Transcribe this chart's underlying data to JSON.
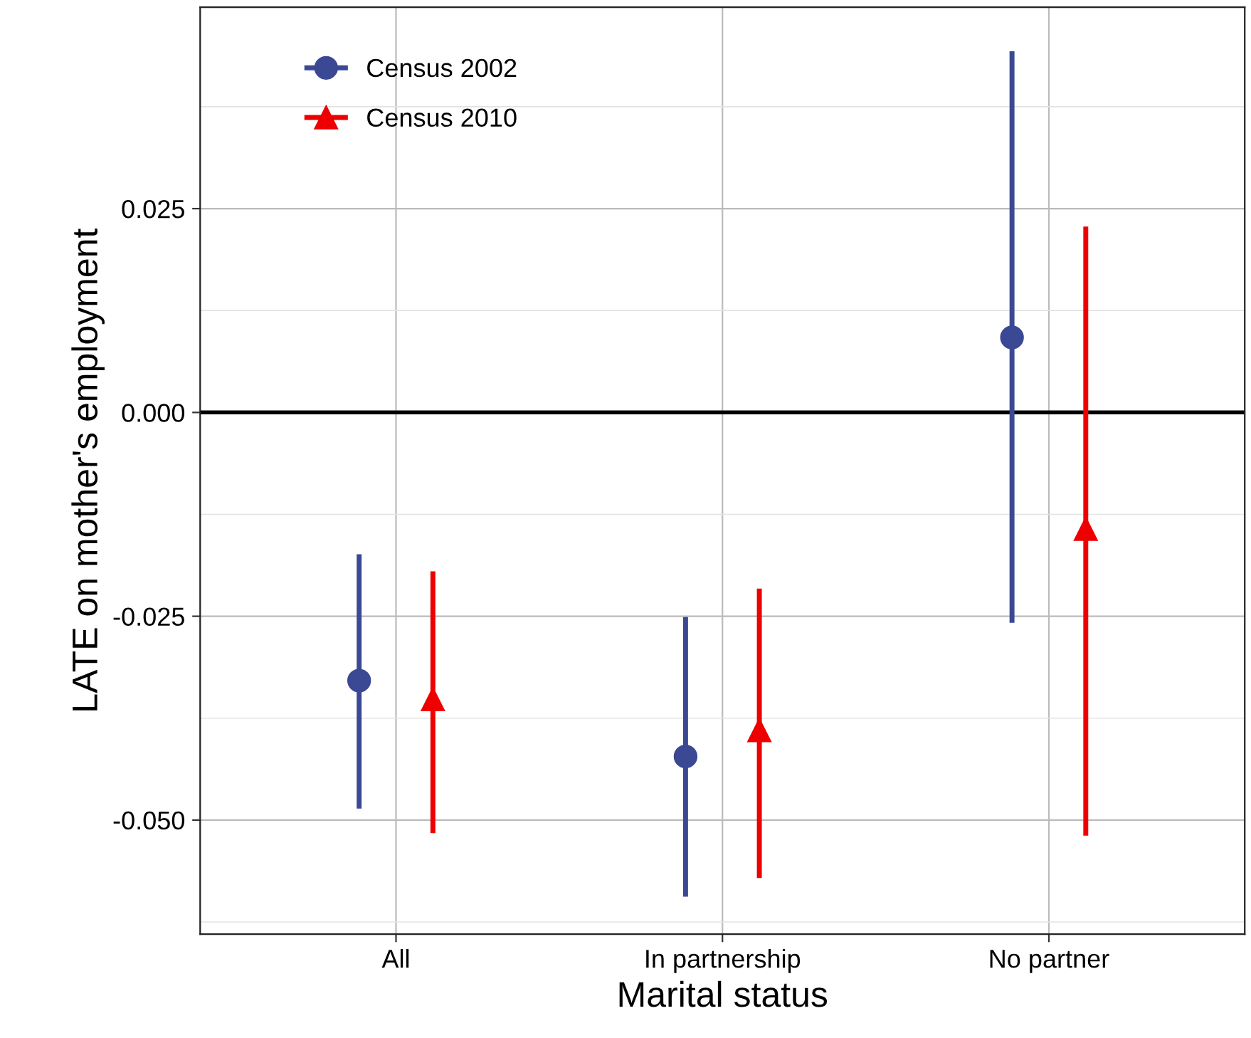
{
  "chart_data": {
    "type": "scatter",
    "xlabel": "Marital status",
    "ylabel": "LATE on mother's employment",
    "categories": [
      "All",
      "In partnership",
      "No partner"
    ],
    "series": [
      {
        "name": "Census 2002",
        "color": "#3b4894",
        "marker": "circle",
        "values": [
          -0.0329,
          -0.0422,
          0.0092
        ],
        "errors": [
          [
            -0.0486,
            -0.0174
          ],
          [
            -0.0594,
            -0.0251
          ],
          [
            -0.0258,
            0.0443
          ]
        ]
      },
      {
        "name": "Census 2010",
        "color": "#ee0000",
        "marker": "triangle",
        "values": [
          -0.0352,
          -0.039,
          -0.0143
        ],
        "errors": [
          [
            -0.0516,
            -0.0195
          ],
          [
            -0.0571,
            -0.0216
          ],
          [
            -0.0519,
            0.0228
          ]
        ]
      }
    ],
    "ylim": [
      -0.064,
      0.0497
    ],
    "yticks": [
      {
        "value": -0.05,
        "label": "-0.050"
      },
      {
        "value": -0.025,
        "label": "-0.025"
      },
      {
        "value": 0,
        "label": "0.000"
      },
      {
        "value": 0.025,
        "label": "0.025"
      }
    ],
    "ref_lines": [
      {
        "axis": "y",
        "value": 0,
        "color": "#000000"
      }
    ],
    "grid": true,
    "legend": "top left"
  }
}
